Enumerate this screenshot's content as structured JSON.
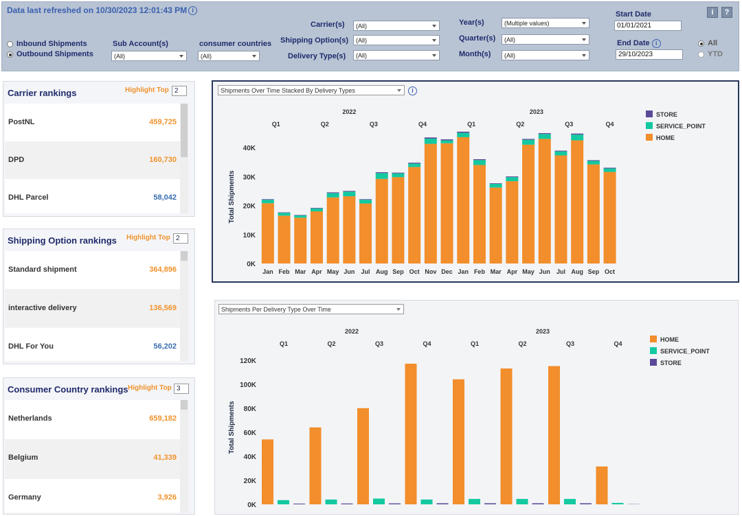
{
  "header": {
    "refresh_text": "Data last refreshed on 10/30/2023 12:01:43 PM",
    "info_glyph": "i"
  },
  "filters": {
    "shipment_direction": {
      "options": [
        "Inbound Shipments",
        "Outbound Shipments"
      ],
      "selected": "Outbound Shipments"
    },
    "sub_account": {
      "label": "Sub Account(s)",
      "value": "(All)"
    },
    "consumer_countries": {
      "label": "consumer countries",
      "value": "(All)"
    },
    "carrier": {
      "label": "Carrier(s)",
      "value": "(All)"
    },
    "shipping_option": {
      "label": "Shipping Option(s)",
      "value": "(All)"
    },
    "delivery_type": {
      "label": "Delivery Type(s)",
      "value": "(All)"
    },
    "year": {
      "label": "Year(s)",
      "value": "(Multiple values)"
    },
    "quarter": {
      "label": "Quarter(s)",
      "value": "(All)"
    },
    "month": {
      "label": "Month(s)",
      "value": "(All)"
    },
    "start_date": {
      "label": "Start Date",
      "value": "01/01/2021"
    },
    "end_date": {
      "label": "End Date",
      "value": "29/10/2023",
      "info_glyph": "i"
    },
    "period": {
      "options": [
        "All",
        "YTD"
      ],
      "selected": "All"
    },
    "info_button": "i",
    "help_button": "?"
  },
  "colors": {
    "home": "#f28e2b",
    "service_point": "#14c9a0",
    "store": "#5b4a9a",
    "value_orange": "#f0922b",
    "value_blue": "#3a6db0"
  },
  "carrier_rankings": {
    "title": "Carrier rankings",
    "highlight_label": "Highlight Top",
    "highlight_value": "2",
    "rows": [
      {
        "name": "PostNL",
        "value": "459,725",
        "highlight": true
      },
      {
        "name": "DPD",
        "value": "160,730",
        "highlight": true
      },
      {
        "name": "DHL Parcel",
        "value": "58,042",
        "highlight": false
      }
    ]
  },
  "shipping_rankings": {
    "title": "Shipping Option  rankings",
    "highlight_label": "Highlight Top",
    "highlight_value": "2",
    "rows": [
      {
        "name": "Standard shipment",
        "value": "364,896",
        "highlight": true
      },
      {
        "name": "interactive delivery",
        "value": "136,569",
        "highlight": true
      },
      {
        "name": "DHL For You",
        "value": "56,202",
        "highlight": false
      }
    ]
  },
  "country_rankings": {
    "title": "Consumer Country rankings",
    "highlight_label": "Highlight Top",
    "highlight_value": "3",
    "rows": [
      {
        "name": "Netherlands",
        "value": "659,182",
        "highlight": true
      },
      {
        "name": "Belgium",
        "value": "41,339",
        "highlight": true
      },
      {
        "name": "Germany",
        "value": "3,926",
        "highlight": true
      }
    ]
  },
  "chart_data": [
    {
      "type": "bar",
      "stacked": true,
      "title": "Shipments Over Time Stacked By Delivery Types",
      "ylabel": "Total Shipments",
      "ylim": [
        0,
        45000
      ],
      "yticks": [
        "0K",
        "10K",
        "20K",
        "30K",
        "40K"
      ],
      "years": [
        {
          "label": "2022",
          "start": 0
        },
        {
          "label": "2023",
          "start": 12
        }
      ],
      "quarters": [
        {
          "label": "Q1",
          "start": 0
        },
        {
          "label": "Q2",
          "start": 3
        },
        {
          "label": "Q3",
          "start": 6
        },
        {
          "label": "Q4",
          "start": 9
        },
        {
          "label": "Q1",
          "start": 12
        },
        {
          "label": "Q2",
          "start": 15
        },
        {
          "label": "Q3",
          "start": 18
        },
        {
          "label": "Q4",
          "start": 21
        }
      ],
      "categories": [
        "Jan",
        "Feb",
        "Mar",
        "Apr",
        "May",
        "Jun",
        "Jul",
        "Aug",
        "Sep",
        "Oct",
        "Nov",
        "Dec",
        "Jan",
        "Feb",
        "Mar",
        "Apr",
        "May",
        "Jun",
        "Jul",
        "Aug",
        "Sep",
        "Oct"
      ],
      "legend": [
        "STORE",
        "SERVICE_POINT",
        "HOME"
      ],
      "series": [
        {
          "name": "HOME",
          "values": [
            20800,
            16500,
            15800,
            18000,
            22800,
            23200,
            20700,
            29200,
            29800,
            33300,
            41300,
            41500,
            43600,
            34000,
            26200,
            28400,
            41000,
            43000,
            37300,
            42500,
            34200,
            31600
          ]
        },
        {
          "name": "SERVICE_POINT",
          "values": [
            1200,
            1000,
            800,
            1000,
            1500,
            1600,
            1300,
            2000,
            1300,
            1200,
            1800,
            1000,
            1500,
            1700,
            1300,
            1400,
            1700,
            1700,
            1400,
            2000,
            1200,
            1200
          ]
        },
        {
          "name": "STORE",
          "values": [
            200,
            150,
            150,
            200,
            250,
            250,
            200,
            300,
            250,
            300,
            400,
            350,
            400,
            300,
            200,
            250,
            300,
            300,
            250,
            350,
            250,
            250
          ]
        }
      ]
    },
    {
      "type": "bar",
      "stacked": false,
      "title": "Shipments Per Delivery Type Over Time",
      "ylabel": "Total Shipments",
      "ylim": [
        0,
        125000
      ],
      "yticks": [
        "0K",
        "20K",
        "40K",
        "60K",
        "80K",
        "100K",
        "120K"
      ],
      "years": [
        {
          "label": "2022",
          "start": 0
        },
        {
          "label": "2023",
          "start": 4
        }
      ],
      "categories": [
        "Q1",
        "Q2",
        "Q3",
        "Q4",
        "Q1",
        "Q2",
        "Q3",
        "Q4"
      ],
      "legend": [
        "HOME",
        "SERVICE_POINT",
        "STORE"
      ],
      "series": [
        {
          "name": "HOME",
          "values": [
            54000,
            64000,
            80000,
            117000,
            104000,
            113000,
            115000,
            31500
          ]
        },
        {
          "name": "SERVICE_POINT",
          "values": [
            3500,
            4000,
            4800,
            4000,
            4500,
            4500,
            4500,
            1200
          ]
        },
        {
          "name": "STORE",
          "values": [
            600,
            700,
            800,
            900,
            900,
            900,
            900,
            200
          ]
        }
      ]
    }
  ]
}
